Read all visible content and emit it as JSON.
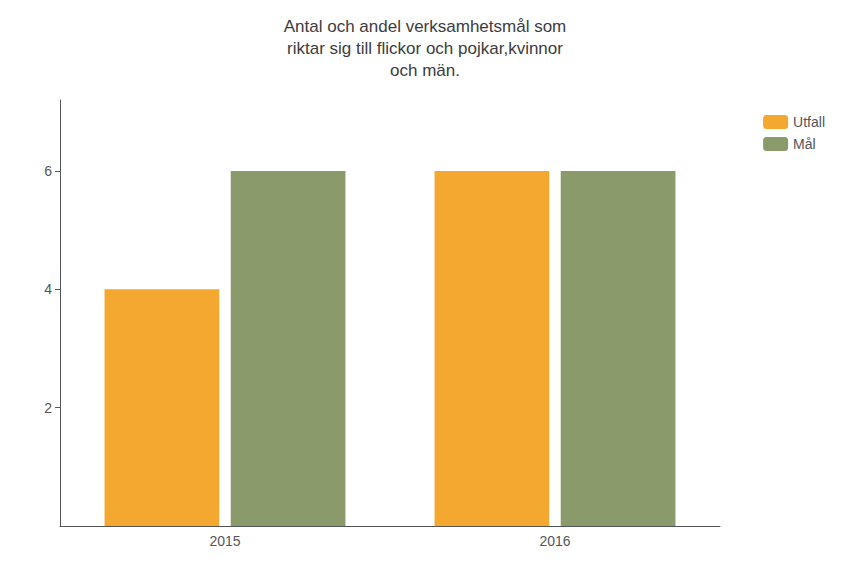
{
  "chart_data": {
    "type": "bar",
    "title": "Antal och andel verksamhetsmål som\nriktar sig till flickor och pojkar,kvinnor\noch män.",
    "categories": [
      "2015",
      "2016"
    ],
    "series": [
      {
        "name": "Utfall",
        "color": "#F5A830",
        "values": [
          4,
          6
        ]
      },
      {
        "name": "Mål",
        "color": "#8A9A6A",
        "values": [
          6,
          6
        ]
      }
    ],
    "ylim": [
      0,
      7.2
    ],
    "yticks": [
      2,
      4,
      6
    ],
    "grid": false,
    "legend": "upper right"
  }
}
